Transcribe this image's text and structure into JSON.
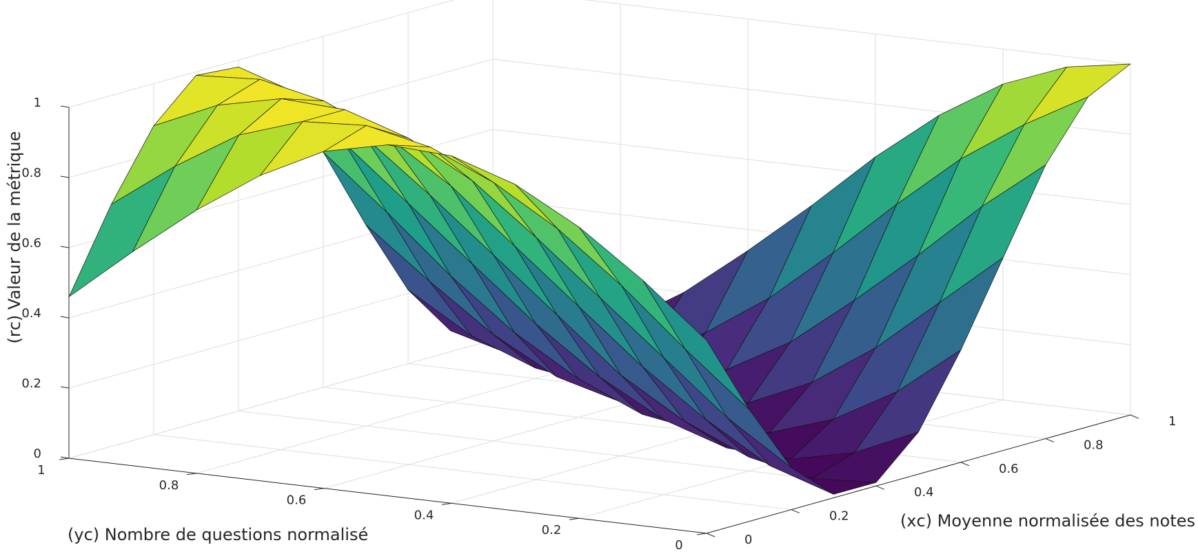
{
  "chart_data": {
    "type": "surface",
    "xlabel": "(xᴄ) Moyenne normalisée des notes",
    "ylabel": "(yᴄ) Nombre de questions normalisé",
    "zlabel": "(rᴄ) Valeur de la métrique",
    "x": [
      0,
      0.1,
      0.2,
      0.3,
      0.4,
      0.5,
      0.6,
      0.7,
      0.8,
      0.9,
      1
    ],
    "y": [
      0,
      0.1,
      0.2,
      0.3,
      0.4,
      0.5,
      0.6,
      0.7,
      0.8,
      0.9,
      1
    ],
    "z": [
      [
        0.55,
        0.32,
        0.12,
        0.01,
        0.01,
        0.12,
        0.32,
        0.55,
        0.78,
        0.94,
        1.0
      ],
      [
        0.7,
        0.47,
        0.24,
        0.07,
        0.0,
        0.04,
        0.18,
        0.4,
        0.64,
        0.84,
        0.97
      ],
      [
        0.83,
        0.63,
        0.39,
        0.18,
        0.04,
        0.0,
        0.08,
        0.25,
        0.48,
        0.72,
        0.9
      ],
      [
        0.93,
        0.77,
        0.54,
        0.31,
        0.12,
        0.01,
        0.02,
        0.13,
        0.33,
        0.57,
        0.79
      ],
      [
        0.99,
        0.88,
        0.69,
        0.46,
        0.23,
        0.07,
        0.0,
        0.05,
        0.19,
        0.41,
        0.65
      ],
      [
        1.0,
        0.96,
        0.83,
        0.61,
        0.38,
        0.17,
        0.03,
        0.0,
        0.09,
        0.26,
        0.49
      ],
      [
        0.96,
        1.0,
        0.93,
        0.76,
        0.53,
        0.3,
        0.11,
        0.01,
        0.02,
        0.14,
        0.34
      ],
      [
        0.87,
        0.99,
        0.99,
        0.88,
        0.68,
        0.45,
        0.22,
        0.06,
        0.0,
        0.05,
        0.2
      ],
      [
        0.75,
        0.93,
        1.0,
        0.96,
        0.82,
        0.6,
        0.36,
        0.16,
        0.03,
        0.01,
        0.09
      ],
      [
        0.61,
        0.82,
        0.96,
        1.0,
        0.92,
        0.75,
        0.52,
        0.29,
        0.1,
        0.01,
        0.02
      ],
      [
        0.46,
        0.69,
        0.88,
        0.99,
        0.98,
        0.87,
        0.67,
        0.43,
        0.21,
        0.06,
        0.0
      ]
    ],
    "xlim": [
      0,
      1
    ],
    "ylim": [
      0,
      1
    ],
    "zlim": [
      0,
      1
    ],
    "xticks": [
      0,
      0.2,
      0.4,
      0.6,
      0.8,
      1
    ],
    "yticks": [
      0,
      0.2,
      0.4,
      0.6,
      0.8,
      1
    ],
    "zticks": [
      0,
      0.2,
      0.4,
      0.6,
      0.8,
      1
    ],
    "grid": true,
    "colormap": "viridis",
    "edgecolor": "#141414"
  }
}
